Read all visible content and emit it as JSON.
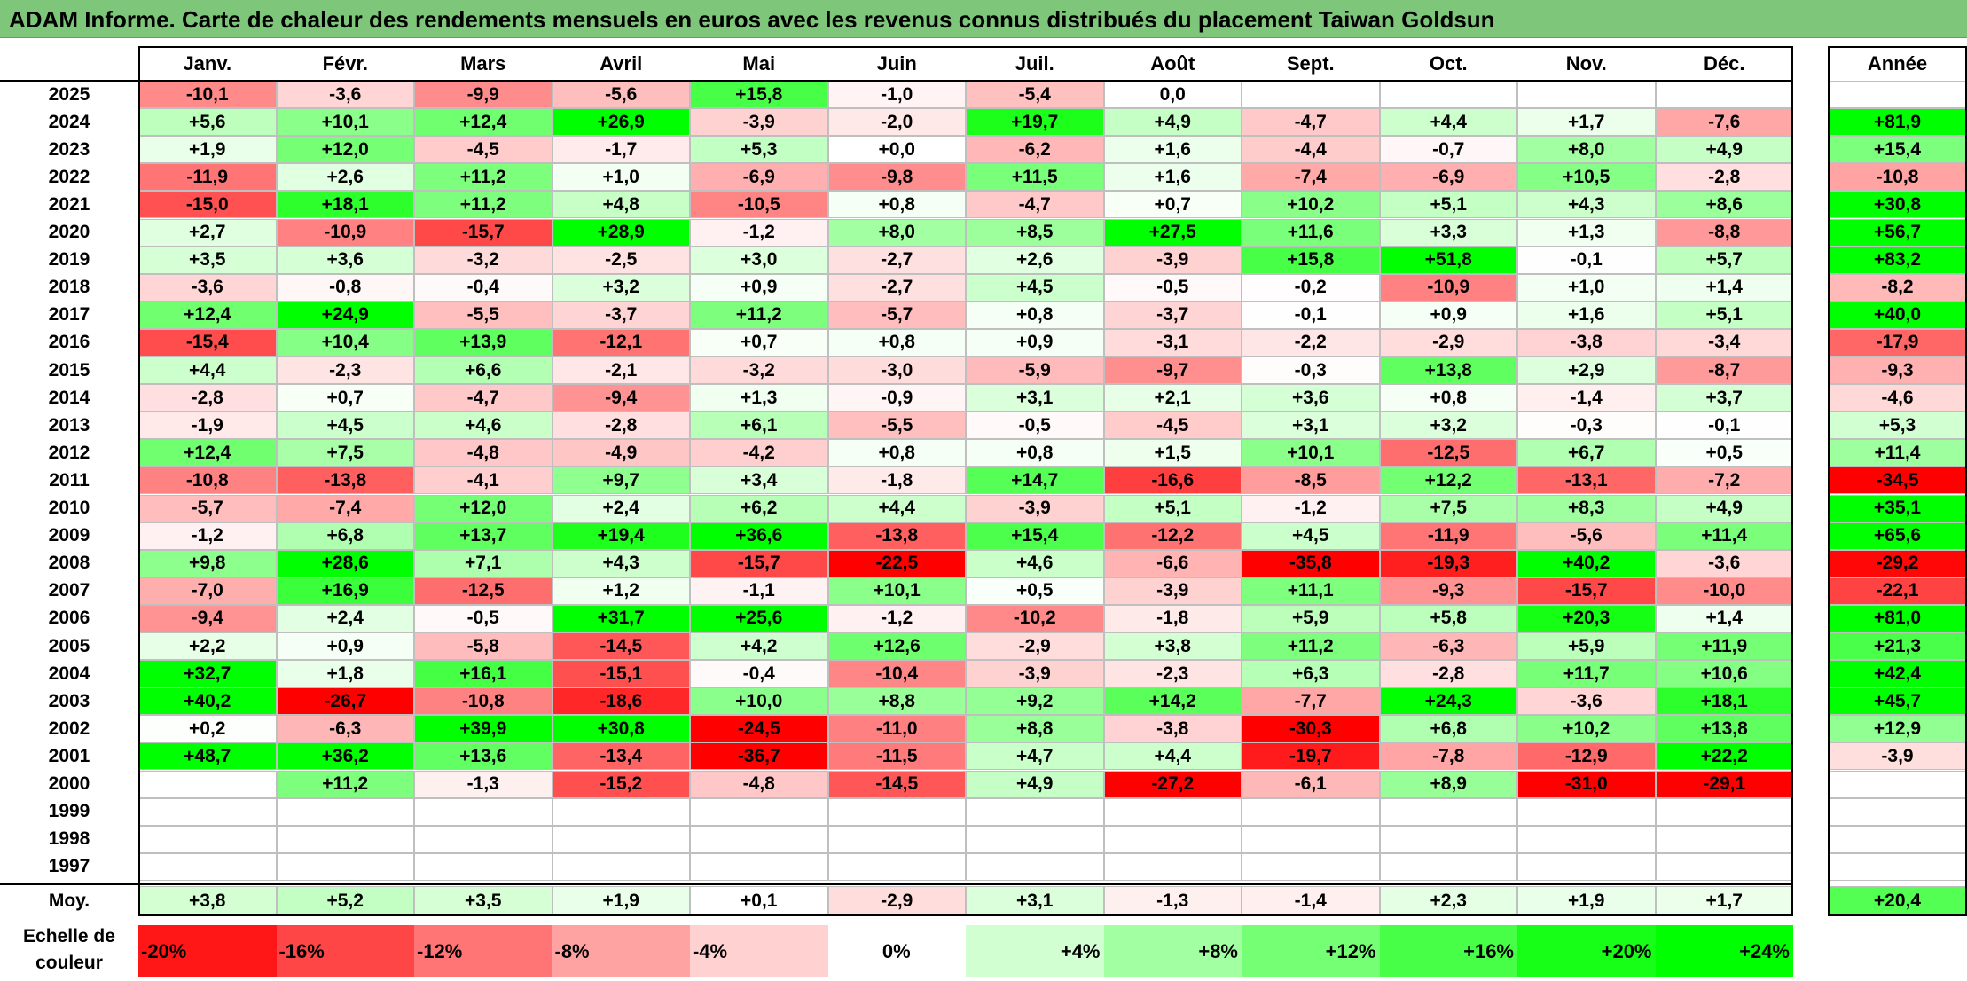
{
  "title": "ADAM Informe. Carte de chaleur des rendements mensuels en euros avec les revenus connus distribués du placement Taiwan Goldsun",
  "chart_data": {
    "type": "heatmap",
    "months": [
      "Janv.",
      "Févr.",
      "Mars",
      "Avril",
      "Mai",
      "Juin",
      "Juil.",
      "Août",
      "Sept.",
      "Oct.",
      "Nov.",
      "Déc."
    ],
    "year_header": "Année",
    "rows": [
      {
        "year": "2025",
        "values": [
          "-10,1",
          "-3,6",
          "-9,9",
          "-5,6",
          "+15,8",
          "-1,0",
          "-5,4",
          "0,0",
          "",
          "",
          "",
          ""
        ],
        "annual": ""
      },
      {
        "year": "2024",
        "values": [
          "+5,6",
          "+10,1",
          "+12,4",
          "+26,9",
          "-3,9",
          "-2,0",
          "+19,7",
          "+4,9",
          "-4,7",
          "+4,4",
          "+1,7",
          "-7,6"
        ],
        "annual": "+81,9"
      },
      {
        "year": "2023",
        "values": [
          "+1,9",
          "+12,0",
          "-4,5",
          "-1,7",
          "+5,3",
          "+0,0",
          "-6,2",
          "+1,6",
          "-4,4",
          "-0,7",
          "+8,0",
          "+4,9"
        ],
        "annual": "+15,4"
      },
      {
        "year": "2022",
        "values": [
          "-11,9",
          "+2,6",
          "+11,2",
          "+1,0",
          "-6,9",
          "-9,8",
          "+11,5",
          "+1,6",
          "-7,4",
          "-6,9",
          "+10,5",
          "-2,8"
        ],
        "annual": "-10,8"
      },
      {
        "year": "2021",
        "values": [
          "-15,0",
          "+18,1",
          "+11,2",
          "+4,8",
          "-10,5",
          "+0,8",
          "-4,7",
          "+0,7",
          "+10,2",
          "+5,1",
          "+4,3",
          "+8,6"
        ],
        "annual": "+30,8"
      },
      {
        "year": "2020",
        "values": [
          "+2,7",
          "-10,9",
          "-15,7",
          "+28,9",
          "-1,2",
          "+8,0",
          "+8,5",
          "+27,5",
          "+11,6",
          "+3,3",
          "+1,3",
          "-8,8"
        ],
        "annual": "+56,7"
      },
      {
        "year": "2019",
        "values": [
          "+3,5",
          "+3,6",
          "-3,2",
          "-2,5",
          "+3,0",
          "-2,7",
          "+2,6",
          "-3,9",
          "+15,8",
          "+51,8",
          "-0,1",
          "+5,7"
        ],
        "annual": "+83,2"
      },
      {
        "year": "2018",
        "values": [
          "-3,6",
          "-0,8",
          "-0,4",
          "+3,2",
          "+0,9",
          "-2,7",
          "+4,5",
          "-0,5",
          "-0,2",
          "-10,9",
          "+1,0",
          "+1,4"
        ],
        "annual": "-8,2"
      },
      {
        "year": "2017",
        "values": [
          "+12,4",
          "+24,9",
          "-5,5",
          "-3,7",
          "+11,2",
          "-5,7",
          "+0,8",
          "-3,7",
          "-0,1",
          "+0,9",
          "+1,6",
          "+5,1"
        ],
        "annual": "+40,0"
      },
      {
        "year": "2016",
        "values": [
          "-15,4",
          "+10,4",
          "+13,9",
          "-12,1",
          "+0,7",
          "+0,8",
          "+0,9",
          "-3,1",
          "-2,2",
          "-2,9",
          "-3,8",
          "-3,4"
        ],
        "annual": "-17,9"
      },
      {
        "year": "2015",
        "values": [
          "+4,4",
          "-2,3",
          "+6,6",
          "-2,1",
          "-3,2",
          "-3,0",
          "-5,9",
          "-9,7",
          "-0,3",
          "+13,8",
          "+2,9",
          "-8,7"
        ],
        "annual": "-9,3"
      },
      {
        "year": "2014",
        "values": [
          "-2,8",
          "+0,7",
          "-4,7",
          "-9,4",
          "+1,3",
          "-0,9",
          "+3,1",
          "+2,1",
          "+3,6",
          "+0,8",
          "-1,4",
          "+3,7"
        ],
        "annual": "-4,6"
      },
      {
        "year": "2013",
        "values": [
          "-1,9",
          "+4,5",
          "+4,6",
          "-2,8",
          "+6,1",
          "-5,5",
          "-0,5",
          "-4,5",
          "+3,1",
          "+3,2",
          "-0,3",
          "-0,1"
        ],
        "annual": "+5,3"
      },
      {
        "year": "2012",
        "values": [
          "+12,4",
          "+7,5",
          "-4,8",
          "-4,9",
          "-4,2",
          "+0,8",
          "+0,8",
          "+1,5",
          "+10,1",
          "-12,5",
          "+6,7",
          "+0,5"
        ],
        "annual": "+11,4"
      },
      {
        "year": "2011",
        "values": [
          "-10,8",
          "-13,8",
          "-4,1",
          "+9,7",
          "+3,4",
          "-1,8",
          "+14,7",
          "-16,6",
          "-8,5",
          "+12,2",
          "-13,1",
          "-7,2"
        ],
        "annual": "-34,5"
      },
      {
        "year": "2010",
        "values": [
          "-5,7",
          "-7,4",
          "+12,0",
          "+2,4",
          "+6,2",
          "+4,4",
          "-3,9",
          "+5,1",
          "-1,2",
          "+7,5",
          "+8,3",
          "+4,9"
        ],
        "annual": "+35,1"
      },
      {
        "year": "2009",
        "values": [
          "-1,2",
          "+6,8",
          "+13,7",
          "+19,4",
          "+36,6",
          "-13,8",
          "+15,4",
          "-12,2",
          "+4,5",
          "-11,9",
          "-5,6",
          "+11,4"
        ],
        "annual": "+65,6"
      },
      {
        "year": "2008",
        "values": [
          "+9,8",
          "+28,6",
          "+7,1",
          "+4,3",
          "-15,7",
          "-22,5",
          "+4,6",
          "-6,6",
          "-35,8",
          "-19,3",
          "+40,2",
          "-3,6"
        ],
        "annual": "-29,2"
      },
      {
        "year": "2007",
        "values": [
          "-7,0",
          "+16,9",
          "-12,5",
          "+1,2",
          "-1,1",
          "+10,1",
          "+0,5",
          "-3,9",
          "+11,1",
          "-9,3",
          "-15,7",
          "-10,0"
        ],
        "annual": "-22,1"
      },
      {
        "year": "2006",
        "values": [
          "-9,4",
          "+2,4",
          "-0,5",
          "+31,7",
          "+25,6",
          "-1,2",
          "-10,2",
          "-1,8",
          "+5,9",
          "+5,8",
          "+20,3",
          "+1,4"
        ],
        "annual": "+81,0"
      },
      {
        "year": "2005",
        "values": [
          "+2,2",
          "+0,9",
          "-5,8",
          "-14,5",
          "+4,2",
          "+12,6",
          "-2,9",
          "+3,8",
          "+11,2",
          "-6,3",
          "+5,9",
          "+11,9"
        ],
        "annual": "+21,3"
      },
      {
        "year": "2004",
        "values": [
          "+32,7",
          "+1,8",
          "+16,1",
          "-15,1",
          "-0,4",
          "-10,4",
          "-3,9",
          "-2,3",
          "+6,3",
          "-2,8",
          "+11,7",
          "+10,6"
        ],
        "annual": "+42,4"
      },
      {
        "year": "2003",
        "values": [
          "+40,2",
          "-26,7",
          "-10,8",
          "-18,6",
          "+10,0",
          "+8,8",
          "+9,2",
          "+14,2",
          "-7,7",
          "+24,3",
          "-3,6",
          "+18,1"
        ],
        "annual": "+45,7"
      },
      {
        "year": "2002",
        "values": [
          "+0,2",
          "-6,3",
          "+39,9",
          "+30,8",
          "-24,5",
          "-11,0",
          "+8,8",
          "-3,8",
          "-30,3",
          "+6,8",
          "+10,2",
          "+13,8"
        ],
        "annual": "+12,9"
      },
      {
        "year": "2001",
        "values": [
          "+48,7",
          "+36,2",
          "+13,6",
          "-13,4",
          "-36,7",
          "-11,5",
          "+4,7",
          "+4,4",
          "-19,7",
          "-7,8",
          "-12,9",
          "+22,2"
        ],
        "annual": "-3,9"
      },
      {
        "year": "2000",
        "values": [
          "",
          "+11,2",
          "-1,3",
          "-15,2",
          "-4,8",
          "-14,5",
          "+4,9",
          "-27,2",
          "-6,1",
          "+8,9",
          "-31,0",
          "-29,1"
        ],
        "annual": ""
      },
      {
        "year": "1999",
        "values": [
          "",
          "",
          "",
          "",
          "",
          "",
          "",
          "",
          "",
          "",
          "",
          ""
        ],
        "annual": ""
      },
      {
        "year": "1998",
        "values": [
          "",
          "",
          "",
          "",
          "",
          "",
          "",
          "",
          "",
          "",
          "",
          ""
        ],
        "annual": ""
      },
      {
        "year": "1997",
        "values": [
          "",
          "",
          "",
          "",
          "",
          "",
          "",
          "",
          "",
          "",
          "",
          ""
        ],
        "annual": ""
      }
    ],
    "average": {
      "label": "Moy.",
      "values": [
        "+3,8",
        "+5,2",
        "+3,5",
        "+1,9",
        "+0,1",
        "-2,9",
        "+3,1",
        "-1,3",
        "-1,4",
        "+2,3",
        "+1,9",
        "+1,7"
      ],
      "annual": "+20,4"
    },
    "scale": {
      "label_line1": "Echelle de",
      "label_line2": "couleur",
      "steps": [
        {
          "label": "-20%",
          "value": -20,
          "align": "left"
        },
        {
          "label": "-16%",
          "value": -16,
          "align": "left"
        },
        {
          "label": "-12%",
          "value": -12,
          "align": "left"
        },
        {
          "label": "-8%",
          "value": -8,
          "align": "left"
        },
        {
          "label": "-4%",
          "value": -4,
          "align": "left"
        },
        {
          "label": "0%",
          "value": 0,
          "align": "center"
        },
        {
          "label": "+4%",
          "value": 4,
          "align": "right"
        },
        {
          "label": "+8%",
          "value": 8,
          "align": "right"
        },
        {
          "label": "+12%",
          "value": 12,
          "align": "right"
        },
        {
          "label": "+16%",
          "value": 16,
          "align": "right"
        },
        {
          "label": "+20%",
          "value": 20,
          "align": "right"
        },
        {
          "label": "+24%",
          "value": 24,
          "align": "right"
        }
      ]
    },
    "colors": {
      "negative": "#ff0000",
      "neutral": "#ffffff",
      "positive": "#00ff00"
    }
  }
}
